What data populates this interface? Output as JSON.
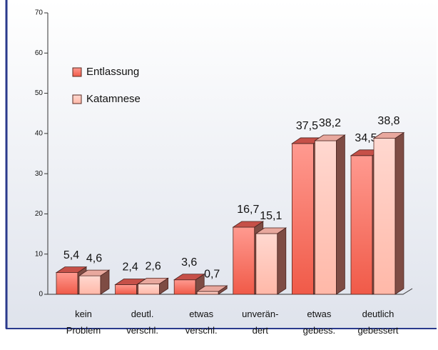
{
  "chart_data": {
    "type": "bar3d",
    "categories": [
      "kein\nProblem",
      "deutl.\nverschl.",
      "etwas\nverschl.",
      "unverän-\ndert",
      "etwas\ngebess.",
      "deutlich\ngebessert"
    ],
    "series": [
      {
        "name": "Entlassung",
        "color": "#f26a62",
        "values": [
          5.4,
          2.4,
          3.6,
          16.7,
          37.5,
          34.5
        ],
        "value_labels": [
          "5,4",
          "2,4",
          "3,6",
          "16,7",
          "37,5",
          "34,5"
        ]
      },
      {
        "name": "Katamnese",
        "color": "#ffcbc2",
        "values": [
          4.6,
          2.6,
          0.7,
          15.1,
          38.2,
          38.8
        ],
        "value_labels": [
          "4,6",
          "2,6",
          "0,7",
          "15,1",
          "38,2",
          "38,8"
        ]
      }
    ],
    "ylim": [
      0,
      70
    ],
    "yticks": [
      0,
      10,
      20,
      30,
      40,
      50,
      60,
      70
    ],
    "legend": "upper-left"
  }
}
